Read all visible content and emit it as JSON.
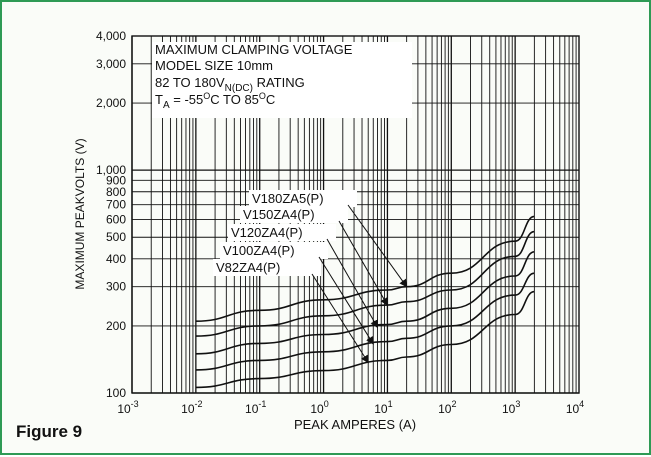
{
  "figure_label": "Figure 9",
  "chart_data": {
    "type": "line",
    "x_log": true,
    "y_log": true,
    "xlim": [
      0.001,
      10000
    ],
    "ylim": [
      100,
      4000
    ],
    "xlabel": "PEAK AMPERES (A)",
    "ylabel": "MAXIMUM PEAKVOLTS (V)",
    "x_ticks": [
      {
        "base": "10",
        "exp": "-3"
      },
      {
        "base": "10",
        "exp": "-2"
      },
      {
        "base": "10",
        "exp": "-1"
      },
      {
        "base": "10",
        "exp": "0"
      },
      {
        "base": "10",
        "exp": "1"
      },
      {
        "base": "10",
        "exp": "2"
      },
      {
        "base": "10",
        "exp": "3"
      },
      {
        "base": "10",
        "exp": "4"
      }
    ],
    "y_ticks": [
      "100",
      "200",
      "300",
      "400",
      "500",
      "600",
      "700",
      "800",
      "900",
      "1,000",
      "2,000",
      "3,000",
      "4,000"
    ],
    "annotation": {
      "line1": "MAXIMUM CLAMPING VOLTAGE",
      "line2": "MODEL SIZE 10mm",
      "line3_a": "82 TO 180V",
      "line3_sub": "N(DC)",
      "line3_b": " RATING",
      "line4_a": "T",
      "line4_sub": "A",
      "line4_b": " = -55",
      "line4_sup1": "O",
      "line4_c": "C TO 85",
      "line4_sup2": "O",
      "line4_d": "C"
    },
    "series": [
      {
        "name": "V180ZA5(P)",
        "x": [
          0.01,
          0.1,
          1,
          10,
          20,
          100,
          1000,
          2000
        ],
        "y": [
          210,
          235,
          262,
          290,
          300,
          345,
          480,
          620
        ]
      },
      {
        "name": "V150ZA4(P)",
        "x": [
          0.01,
          0.1,
          1,
          10,
          20,
          100,
          1000,
          2000
        ],
        "y": [
          180,
          200,
          222,
          248,
          257,
          290,
          410,
          530
        ]
      },
      {
        "name": "V120ZA4(P)",
        "x": [
          0.01,
          0.1,
          1,
          10,
          20,
          100,
          1000,
          2000
        ],
        "y": [
          150,
          167,
          183,
          203,
          210,
          240,
          335,
          430
        ]
      },
      {
        "name": "V100ZA4(P)",
        "x": [
          0.01,
          0.1,
          1,
          10,
          20,
          100,
          1000,
          2000
        ],
        "y": [
          127,
          140,
          153,
          170,
          176,
          200,
          275,
          345
        ]
      },
      {
        "name": "V82ZA4(P)",
        "x": [
          0.01,
          0.1,
          1,
          10,
          20,
          100,
          1000,
          2000
        ],
        "y": [
          106,
          116,
          126,
          140,
          145,
          165,
          225,
          285
        ]
      }
    ],
    "label_targets": [
      {
        "x": 20,
        "y": 300
      },
      {
        "x": 10,
        "y": 248
      },
      {
        "x": 7,
        "y": 197
      },
      {
        "x": 6,
        "y": 166
      },
      {
        "x": 5,
        "y": 137
      }
    ]
  }
}
